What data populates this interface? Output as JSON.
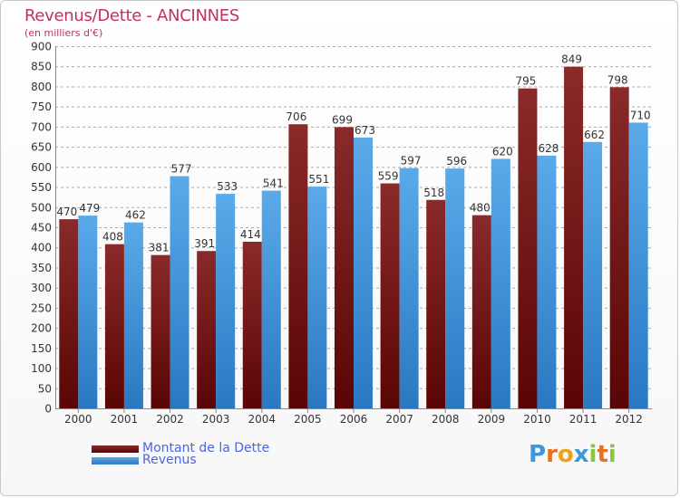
{
  "title": "Revenus/Dette - ANCINNES",
  "subtitle": "(en milliers d'€)",
  "colors": {
    "dette_top": "#8a2a2a",
    "dette_bottom": "#5a0505",
    "revenus_top": "#5aaaea",
    "revenus_bottom": "#2a78c2",
    "axis_text": "#333333",
    "grid": "#aaaaaa",
    "title": "#c0306a",
    "legend_text": "#4a66d8"
  },
  "legend": [
    {
      "label": "Montant de la Dette",
      "color": "#5a0505"
    },
    {
      "label": "Revenus",
      "color": "#3a8ad6"
    }
  ],
  "logo": {
    "text": "Proxiti",
    "letters": [
      {
        "ch": "P",
        "color": "#3a9ad9"
      },
      {
        "ch": "r",
        "color": "#e8701e"
      },
      {
        "ch": "o",
        "color": "#f0a01a"
      },
      {
        "ch": "x",
        "color": "#3a9ad9"
      },
      {
        "ch": "i",
        "color": "#8cc63e"
      },
      {
        "ch": "t",
        "color": "#e8701e"
      },
      {
        "ch": "i",
        "color": "#8cc63e"
      }
    ]
  },
  "chart_data": {
    "type": "bar",
    "categories": [
      "2000",
      "2001",
      "2002",
      "2003",
      "2004",
      "2005",
      "2006",
      "2007",
      "2008",
      "2009",
      "2010",
      "2011",
      "2012"
    ],
    "series": [
      {
        "name": "Montant de la Dette",
        "values": [
          470,
          408,
          381,
          391,
          414,
          706,
          699,
          559,
          518,
          480,
          795,
          849,
          798
        ]
      },
      {
        "name": "Revenus",
        "values": [
          479,
          462,
          577,
          533,
          541,
          551,
          673,
          597,
          596,
          620,
          628,
          662,
          710
        ]
      }
    ],
    "title": "Revenus/Dette - ANCINNES",
    "subtitle": "(en milliers d'€)",
    "xlabel": "",
    "ylabel": "",
    "ylim": [
      0,
      900
    ],
    "yticks": [
      0,
      50,
      100,
      150,
      200,
      250,
      300,
      350,
      400,
      450,
      500,
      550,
      600,
      650,
      700,
      750,
      800,
      850,
      900
    ],
    "grid": true,
    "legend_position": "bottom-left"
  }
}
